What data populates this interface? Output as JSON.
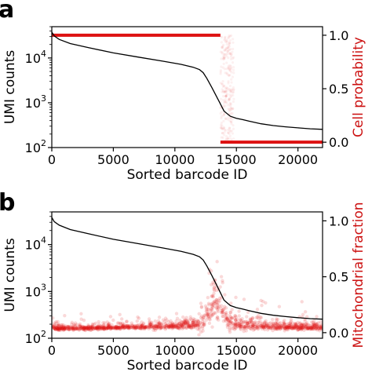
{
  "chart_data": [
    {
      "type": "line",
      "panel_label": "a",
      "xlabel": "Sorted barcode ID",
      "ylabel_left": "UMI counts",
      "ylabel_right": "Cell probability",
      "xlim": [
        0,
        22000
      ],
      "ylim_left": [
        100,
        50000
      ],
      "yscale_left": "log",
      "ylim_right": [
        -0.05,
        1.08
      ],
      "x_ticks": [
        "0",
        "5000",
        "10000",
        "15000",
        "20000"
      ],
      "x_tick_values": [
        0,
        5000,
        10000,
        15000,
        20000
      ],
      "y_ticks_left": [
        {
          "base": "10",
          "exp": "2",
          "value": 100
        },
        {
          "base": "10",
          "exp": "3",
          "value": 1000
        },
        {
          "base": "10",
          "exp": "4",
          "value": 10000
        }
      ],
      "y_ticks_right": [
        {
          "label": "0.0",
          "value": 0.0
        },
        {
          "label": "0.5",
          "value": 0.5
        },
        {
          "label": "1.0",
          "value": 1.0
        }
      ],
      "series": [
        {
          "role": "umi_counts",
          "axis": "left",
          "color": "#000000",
          "x": [
            0,
            200,
            600,
            1500,
            3000,
            5000,
            7000,
            9000,
            10500,
            11500,
            12000,
            12300,
            12600,
            13000,
            13500,
            14000,
            14500,
            15000,
            15500,
            16000,
            17000,
            18000,
            19000,
            20000,
            21000,
            22000
          ],
          "y": [
            38000,
            31000,
            26000,
            21000,
            17000,
            13000,
            10500,
            8500,
            7200,
            6200,
            5500,
            4700,
            3500,
            2200,
            1200,
            650,
            500,
            450,
            420,
            390,
            340,
            310,
            290,
            275,
            262,
            255
          ]
        },
        {
          "role": "cell_probability",
          "axis": "right",
          "color": "#dd1111",
          "segments": [
            {
              "x_start": 0,
              "x_end": 13700,
              "y": 1.0
            },
            {
              "x_start": 13700,
              "x_end": 22000,
              "y": 0.0
            }
          ],
          "scatter_region": {
            "x_start": 13700,
            "x_end": 14800,
            "y_min": 0.0,
            "y_max": 1.0
          }
        }
      ]
    },
    {
      "type": "scatter",
      "panel_label": "b",
      "xlabel": "Sorted barcode ID",
      "ylabel_left": "UMI counts",
      "ylabel_right": "Mitochondrial fraction",
      "xlim": [
        0,
        22000
      ],
      "ylim_left": [
        100,
        50000
      ],
      "yscale_left": "log",
      "ylim_right": [
        -0.05,
        1.08
      ],
      "x_ticks": [
        "0",
        "5000",
        "10000",
        "15000",
        "20000"
      ],
      "x_tick_values": [
        0,
        5000,
        10000,
        15000,
        20000
      ],
      "y_ticks_left": [
        {
          "base": "10",
          "exp": "2",
          "value": 100
        },
        {
          "base": "10",
          "exp": "3",
          "value": 1000
        },
        {
          "base": "10",
          "exp": "4",
          "value": 10000
        }
      ],
      "y_ticks_right": [
        {
          "label": "0.0",
          "value": 0.0
        },
        {
          "label": "0.5",
          "value": 0.5
        },
        {
          "label": "1.0",
          "value": 1.0
        }
      ],
      "series": [
        {
          "role": "umi_counts",
          "axis": "left",
          "color": "#000000",
          "x": [
            0,
            200,
            600,
            1500,
            3000,
            5000,
            7000,
            9000,
            10500,
            11500,
            12000,
            12300,
            12600,
            13000,
            13500,
            14000,
            14500,
            15000,
            15500,
            16000,
            17000,
            18000,
            19000,
            20000,
            21000,
            22000
          ],
          "y": [
            38000,
            31000,
            26000,
            21000,
            17000,
            13000,
            10500,
            8500,
            7200,
            6200,
            5500,
            4700,
            3500,
            2200,
            1200,
            650,
            500,
            450,
            420,
            390,
            340,
            310,
            290,
            275,
            262,
            255
          ]
        },
        {
          "role": "mitochondrial_fraction",
          "axis": "right",
          "color": "#dd1111",
          "band_x": [
            0,
            2000,
            4000,
            6000,
            8000,
            10000,
            11500,
            12300,
            12800,
            13300,
            13800,
            14300,
            15000,
            17000,
            19000,
            22000
          ],
          "band_center": [
            0.04,
            0.04,
            0.045,
            0.05,
            0.055,
            0.06,
            0.07,
            0.09,
            0.18,
            0.3,
            0.2,
            0.12,
            0.08,
            0.06,
            0.05,
            0.05
          ],
          "band_spread": [
            0.02,
            0.02,
            0.02,
            0.02,
            0.025,
            0.03,
            0.05,
            0.08,
            0.14,
            0.18,
            0.16,
            0.1,
            0.06,
            0.04,
            0.03,
            0.03
          ]
        }
      ]
    }
  ]
}
